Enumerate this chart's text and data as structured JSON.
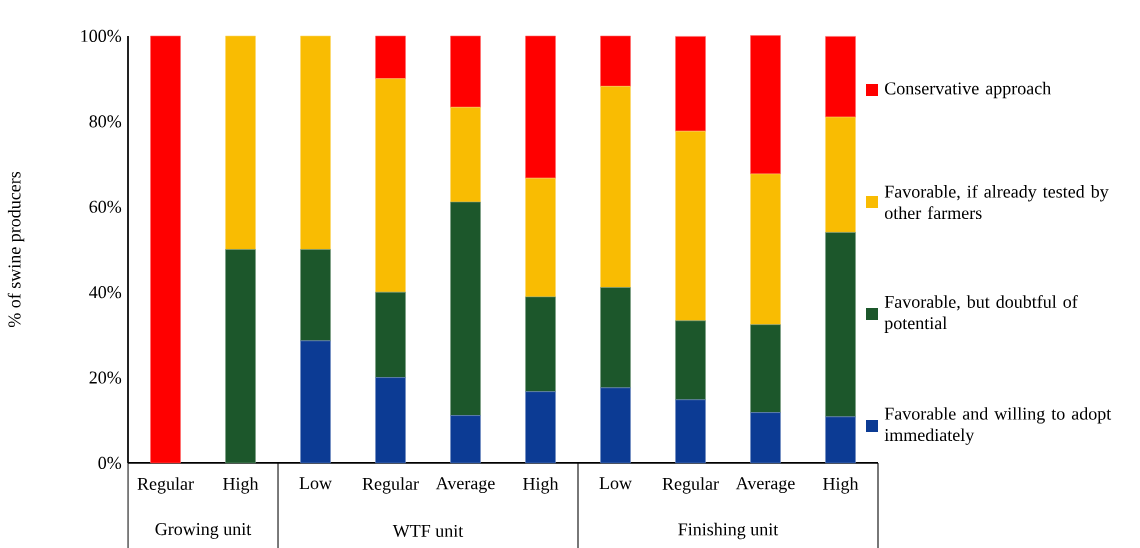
{
  "chart_data": {
    "type": "bar",
    "stacked": true,
    "ylabel": "%  of swine producers",
    "categories": [
      "Regular",
      "High",
      "Low",
      "Regular",
      "Average",
      "High",
      "Low",
      "Regular",
      "Average",
      "High"
    ],
    "series": [
      {
        "name": "Favorable and  willing to adopt immediately",
        "color": "#0c3b94",
        "values": [
          0,
          0,
          28.6,
          20,
          11.1,
          16.7,
          17.6,
          14.8,
          11.8,
          10.8
        ]
      },
      {
        "name": "Favorable, but doubtful of potential",
        "color": "#1c572b",
        "values": [
          0,
          50,
          21.4,
          20,
          50,
          22.2,
          23.5,
          18.5,
          20.6,
          43.2
        ]
      },
      {
        "name": "Favorable, if already tested by other farmers",
        "color": "#f9bc02",
        "values": [
          0,
          50,
          50,
          50,
          22.2,
          27.8,
          47.1,
          44.4,
          35.3,
          27.0
        ]
      },
      {
        "name": "Conservative approach",
        "color": "#ff0000",
        "values": [
          100,
          0,
          0,
          10,
          16.7,
          33.3,
          11.8,
          22.2,
          32.4,
          18.9
        ]
      }
    ],
    "ylim": [
      0,
      100
    ],
    "yticks": [
      {
        "value": 0,
        "label": "0%"
      },
      {
        "value": 20,
        "label": "20%"
      },
      {
        "value": 40,
        "label": "40%"
      },
      {
        "value": 60,
        "label": "60%"
      },
      {
        "value": 80,
        "label": "80%"
      },
      {
        "value": 100,
        "label": "100%"
      }
    ],
    "legend": "right",
    "grid": false,
    "annotations": [
      "Growing unit",
      "WTF unit",
      "Finishing unit"
    ]
  }
}
